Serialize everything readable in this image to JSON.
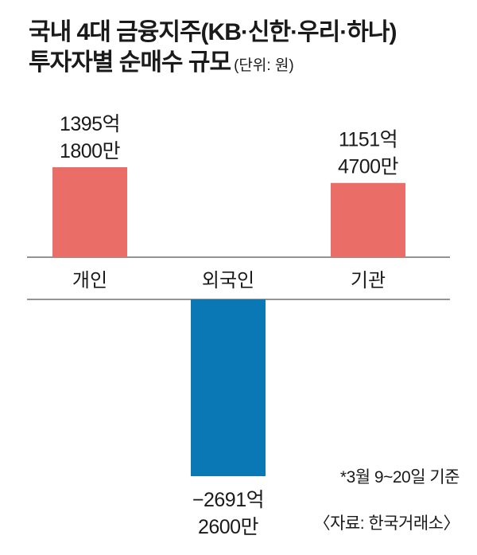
{
  "title": {
    "line1": "국내 4대 금융지주(KB·신한·우리·하나)",
    "line2": "투자자별 순매수 규모",
    "unit": "(단위: 원)"
  },
  "chart_data": {
    "type": "bar",
    "categories": [
      "개인",
      "외국인",
      "기관"
    ],
    "values": [
      139518000000,
      -269126000000,
      115147000000
    ],
    "value_labels": [
      [
        "1395억",
        "1800만"
      ],
      [
        "−2691억",
        "2600만"
      ],
      [
        "1151억",
        "4700만"
      ]
    ],
    "colors": [
      "#ea6d67",
      "#0a78b4",
      "#ea6d67"
    ],
    "ylim": [
      -269126000000,
      139518000000
    ],
    "title": "국내 4대 금융지주(KB·신한·우리·하나) 투자자별 순매수 규모",
    "xlabel": "",
    "ylabel": "",
    "grid": false,
    "legend": "none"
  },
  "notes": {
    "basis": "*3월 9~20일 기준",
    "source": "〈자료: 한국거래소〉"
  }
}
